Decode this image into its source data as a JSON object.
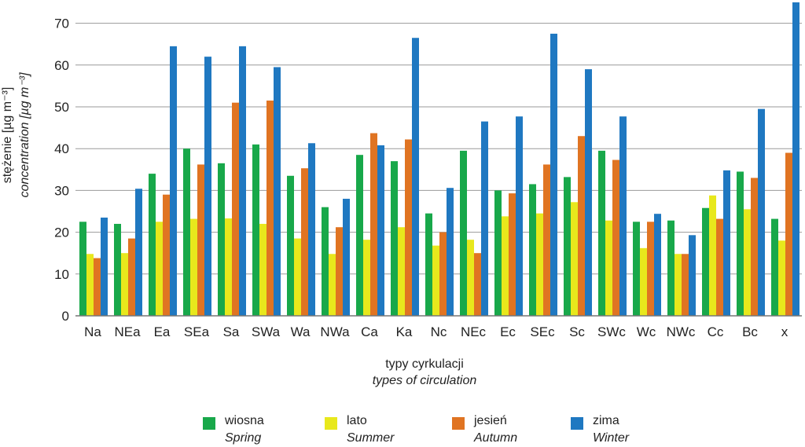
{
  "chart_data": {
    "type": "bar",
    "ylabel": "stężenie [µg m⁻³]",
    "ylabel_en": "concentration [µg m⁻³]",
    "xlabel": "typy cyrkulacji",
    "xlabel_en": "types of circulation",
    "ylim": [
      0,
      75
    ],
    "yticks": [
      0,
      10,
      20,
      30,
      40,
      50,
      60,
      70
    ],
    "grid": true,
    "legend_position": "bottom",
    "categories": [
      "Na",
      "NEa",
      "Ea",
      "SEa",
      "Sa",
      "SWa",
      "Wa",
      "NWa",
      "Ca",
      "Ka",
      "Nc",
      "NEc",
      "Ec",
      "SEc",
      "Sc",
      "SWc",
      "Wc",
      "NWc",
      "Cc",
      "Bc",
      "x"
    ],
    "series": [
      {
        "name": "wiosna",
        "name_en": "Spring",
        "color": "#18a84a",
        "values": [
          22.5,
          22,
          34,
          40,
          36.5,
          41,
          33.5,
          26,
          38.5,
          37,
          24.5,
          39.5,
          30,
          31.5,
          33.2,
          39.5,
          22.5,
          22.8,
          25.8,
          34.5,
          23.2
        ]
      },
      {
        "name": "lato",
        "name_en": "Summer",
        "color": "#e8e81c",
        "values": [
          14.8,
          15,
          22.5,
          23.2,
          23.3,
          22,
          18.5,
          14.8,
          18.2,
          21.2,
          16.8,
          18.2,
          23.8,
          24.5,
          27.2,
          22.8,
          16.2,
          14.8,
          28.8,
          25.5,
          18
        ]
      },
      {
        "name": "jesień",
        "name_en": "Autumn",
        "color": "#e07422",
        "values": [
          13.8,
          18.5,
          29,
          36.2,
          51,
          51.5,
          35.3,
          21.2,
          43.7,
          42.2,
          20,
          15,
          29.3,
          36.2,
          43,
          37.3,
          22.5,
          14.8,
          23.2,
          33,
          39
        ]
      },
      {
        "name": "zima",
        "name_en": "Winter",
        "color": "#1f78c1",
        "values": [
          23.5,
          30.4,
          64.5,
          62,
          64.5,
          59.5,
          41.3,
          28,
          40.8,
          66.5,
          30.6,
          46.5,
          47.7,
          67.5,
          59,
          47.7,
          24.4,
          19.3,
          34.8,
          49.5,
          75
        ]
      }
    ]
  }
}
